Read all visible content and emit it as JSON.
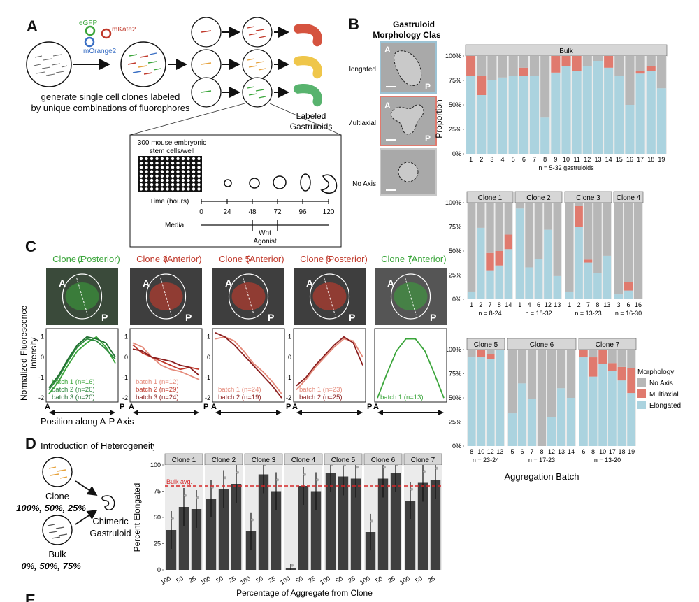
{
  "panel_labels": {
    "a": "A",
    "b": "B",
    "c": "C",
    "d": "D",
    "e": "E"
  },
  "colors": {
    "noaxis": "#b7b7b7",
    "multiaxial": "#e07a6e",
    "elongated": "#abd3df",
    "strip": "#d6d6d6",
    "bar": "#3f3f3f",
    "bulkline": "#d62728",
    "green": "#3aa53a",
    "red": "#c0392b",
    "lightred": "#e58a7a",
    "darkgreen": "#1f6e2f"
  },
  "panel_a": {
    "fluorophores": [
      "eGFP",
      "mKate2",
      "mOrange2"
    ],
    "caption_line1": "generate single cell clones labeled",
    "caption_line2": "by unique combinations of fluorophores",
    "labeled_line1": "Labeled",
    "labeled_line2": "Gastruloids",
    "inset_line1": "300 mouse embryonic",
    "inset_line2": "stem cells/well",
    "time_label": "Time (hours)",
    "time_ticks": [
      "0",
      "24",
      "48",
      "72",
      "96",
      "120"
    ],
    "media_label": "Media",
    "wnt_line1": "Wnt",
    "wnt_line2": "Agonist"
  },
  "panel_b": {
    "title_line1": "Gastruloid",
    "title_line2": "Morphology Classes",
    "classes": [
      "Elongated",
      "Multiaxial",
      "No Axis"
    ],
    "axis_a": "A",
    "axis_p": "P",
    "ylabel": "Proportion",
    "xlabel": "Aggregation Batch",
    "legend_title": "Morphology",
    "legend_items": [
      "No Axis",
      "Multiaxial",
      "Elongated"
    ]
  },
  "panel_c": {
    "clones": [
      {
        "name": "Clone 1",
        "loc": "(Posterior)",
        "a": "A",
        "p": "P",
        "batches": [
          "batch 1 (n=16)",
          "batch 2 (n=26)",
          "batch 3 (n=20)"
        ]
      },
      {
        "name": "Clone 3",
        "loc": "(Anterior)",
        "a": "A",
        "p": "P",
        "batches": [
          "batch 1 (n=12)",
          "batch 2 (n=29)",
          "batch 3 (n=24)"
        ]
      },
      {
        "name": "Clone 5",
        "loc": "(Anterior)",
        "a": "A",
        "p": "P",
        "batches": [
          "batch 1 (n=24)",
          "batch 2 (n=19)"
        ]
      },
      {
        "name": "Clone 6",
        "loc": "(Posterior)",
        "a": "A",
        "p": "P",
        "batches": [
          "batch 1 (n=23)",
          "batch 2 (n=25)"
        ]
      },
      {
        "name": "Clone 7",
        "loc": "(Anterior)",
        "a": "A",
        "p": "P",
        "batches": [
          "batch 1 (n=13)"
        ]
      }
    ],
    "ylabel_line1": "Normalized Fluorescence",
    "ylabel_line2": "Intensity",
    "xlabel": "Position along A-P Axis",
    "yticks": [
      "1",
      "0",
      "-1",
      "-2"
    ],
    "axis_a": "A",
    "axis_p": "P"
  },
  "panel_d": {
    "title": "Introduction of Heterogeneity",
    "clone_label": "Clone",
    "clone_pcts": "100%, 50%, 25%",
    "bulk_label": "Bulk",
    "bulk_pcts": "0%, 50%, 75%",
    "chimeric_line1": "Chimeric",
    "chimeric_line2": "Gastruloid"
  },
  "chart_data": [
    {
      "type": "bar",
      "title": "Bulk",
      "stacked": true,
      "ylabel": "Proportion",
      "yticks": [
        "0%",
        "25%",
        "50%",
        "75%",
        "100%"
      ],
      "ylim": [
        0,
        100
      ],
      "categories": [
        "1",
        "2",
        "3",
        "4",
        "5",
        "6",
        "7",
        "8",
        "9",
        "10",
        "11",
        "12",
        "13",
        "14",
        "15",
        "16",
        "17",
        "18",
        "19"
      ],
      "series": [
        {
          "name": "Elongated",
          "values": [
            80,
            60,
            75,
            78,
            80,
            80,
            80,
            37,
            83,
            90,
            85,
            90,
            95,
            88,
            80,
            50,
            82,
            85,
            67
          ]
        },
        {
          "name": "Multiaxial",
          "values": [
            20,
            20,
            0,
            0,
            0,
            8,
            0,
            0,
            17,
            10,
            15,
            0,
            0,
            12,
            0,
            0,
            3,
            5,
            0
          ]
        },
        {
          "name": "No Axis",
          "values": [
            0,
            20,
            25,
            22,
            20,
            12,
            20,
            63,
            0,
            0,
            0,
            10,
            5,
            0,
            20,
            50,
            15,
            10,
            33
          ]
        }
      ],
      "note": "n = 5-32 gastruloids"
    },
    {
      "type": "bar",
      "stacked": true,
      "facets": [
        {
          "title": "Clone 1",
          "categories": [
            "1",
            "2",
            "7",
            "8",
            "14"
          ],
          "note": "n = 8-24",
          "series": [
            {
              "name": "Elongated",
              "values": [
                8,
                74,
                30,
                35,
                52
              ]
            },
            {
              "name": "Multiaxial",
              "values": [
                0,
                0,
                18,
                15,
                15
              ]
            },
            {
              "name": "No Axis",
              "values": [
                92,
                26,
                52,
                50,
                33
              ]
            }
          ]
        },
        {
          "title": "Clone 2",
          "categories": [
            "1",
            "4",
            "6",
            "12",
            "13"
          ],
          "note": "n = 18-32",
          "series": [
            {
              "name": "Elongated",
              "values": [
                94,
                33,
                42,
                72,
                24
              ]
            },
            {
              "name": "Multiaxial",
              "values": [
                0,
                0,
                0,
                0,
                0
              ]
            },
            {
              "name": "No Axis",
              "values": [
                6,
                67,
                58,
                28,
                76
              ]
            }
          ]
        },
        {
          "title": "Clone 3",
          "categories": [
            "1",
            "2",
            "7",
            "8",
            "13"
          ],
          "note": "n = 13-23",
          "series": [
            {
              "name": "Elongated",
              "values": [
                8,
                75,
                38,
                27,
                45
              ]
            },
            {
              "name": "Multiaxial",
              "values": [
                0,
                22,
                3,
                0,
                0
              ]
            },
            {
              "name": "No Axis",
              "values": [
                92,
                3,
                59,
                73,
                55
              ]
            }
          ]
        },
        {
          "title": "Clone 4",
          "categories": [
            "3",
            "6",
            "16"
          ],
          "note": "n = 16-30",
          "series": [
            {
              "name": "Elongated",
              "values": [
                5,
                9,
                0
              ]
            },
            {
              "name": "Multiaxial",
              "values": [
                0,
                9,
                0
              ]
            },
            {
              "name": "No Axis",
              "values": [
                95,
                82,
                100
              ]
            }
          ]
        }
      ]
    },
    {
      "type": "bar",
      "stacked": true,
      "xlabel": "Aggregation Batch",
      "legend": {
        "title": "Morphology",
        "items": [
          "No Axis",
          "Multiaxial",
          "Elongated"
        ]
      },
      "facets": [
        {
          "title": "Clone 5",
          "categories": [
            "8",
            "10",
            "12",
            "13"
          ],
          "note": "n = 23-24",
          "series": [
            {
              "name": "Elongated",
              "values": [
                92,
                92,
                90,
                100
              ]
            },
            {
              "name": "Multiaxial",
              "values": [
                0,
                8,
                5,
                0
              ]
            },
            {
              "name": "No Axis",
              "values": [
                8,
                0,
                5,
                0
              ]
            }
          ]
        },
        {
          "title": "Clone 6",
          "categories": [
            "5",
            "6",
            "7",
            "8",
            "12",
            "13",
            "14"
          ],
          "note": "n = 17-23",
          "series": [
            {
              "name": "Elongated",
              "values": [
                34,
                65,
                49,
                0,
                30,
                60,
                50
              ]
            },
            {
              "name": "Multiaxial",
              "values": [
                0,
                0,
                0,
                0,
                0,
                0,
                0
              ]
            },
            {
              "name": "No Axis",
              "values": [
                66,
                35,
                51,
                100,
                70,
                40,
                50
              ]
            }
          ]
        },
        {
          "title": "Clone 7",
          "categories": [
            "6",
            "8",
            "10",
            "17",
            "18",
            "19"
          ],
          "note": "n = 13-20",
          "series": [
            {
              "name": "Elongated",
              "values": [
                92,
                72,
                85,
                78,
                68,
                55
              ]
            },
            {
              "name": "Multiaxial",
              "values": [
                8,
                20,
                15,
                8,
                14,
                26
              ]
            },
            {
              "name": "No Axis",
              "values": [
                0,
                8,
                0,
                14,
                18,
                19
              ]
            }
          ]
        }
      ]
    },
    {
      "type": "bar",
      "ylabel": "Percent Elongated",
      "xlabel": "Percentage of Aggregate from Clone",
      "ylim": [
        0,
        100
      ],
      "yticks": [
        "0",
        "25",
        "50",
        "75",
        "100"
      ],
      "reference_line": {
        "label": "Bulk avg.",
        "value": 80
      },
      "categories": [
        "100",
        "50",
        "25"
      ],
      "facets": [
        {
          "title": "Clone 1",
          "values": [
            38,
            60,
            58
          ]
        },
        {
          "title": "Clone 2",
          "values": [
            68,
            77,
            82
          ]
        },
        {
          "title": "Clone 3",
          "values": [
            37,
            91,
            75
          ]
        },
        {
          "title": "Clone 4",
          "values": [
            2,
            80,
            75
          ]
        },
        {
          "title": "Clone 5",
          "values": [
            92,
            89,
            87
          ]
        },
        {
          "title": "Clone 6",
          "values": [
            36,
            87,
            92
          ]
        },
        {
          "title": "Clone 7",
          "values": [
            66,
            83,
            86
          ]
        }
      ]
    }
  ]
}
